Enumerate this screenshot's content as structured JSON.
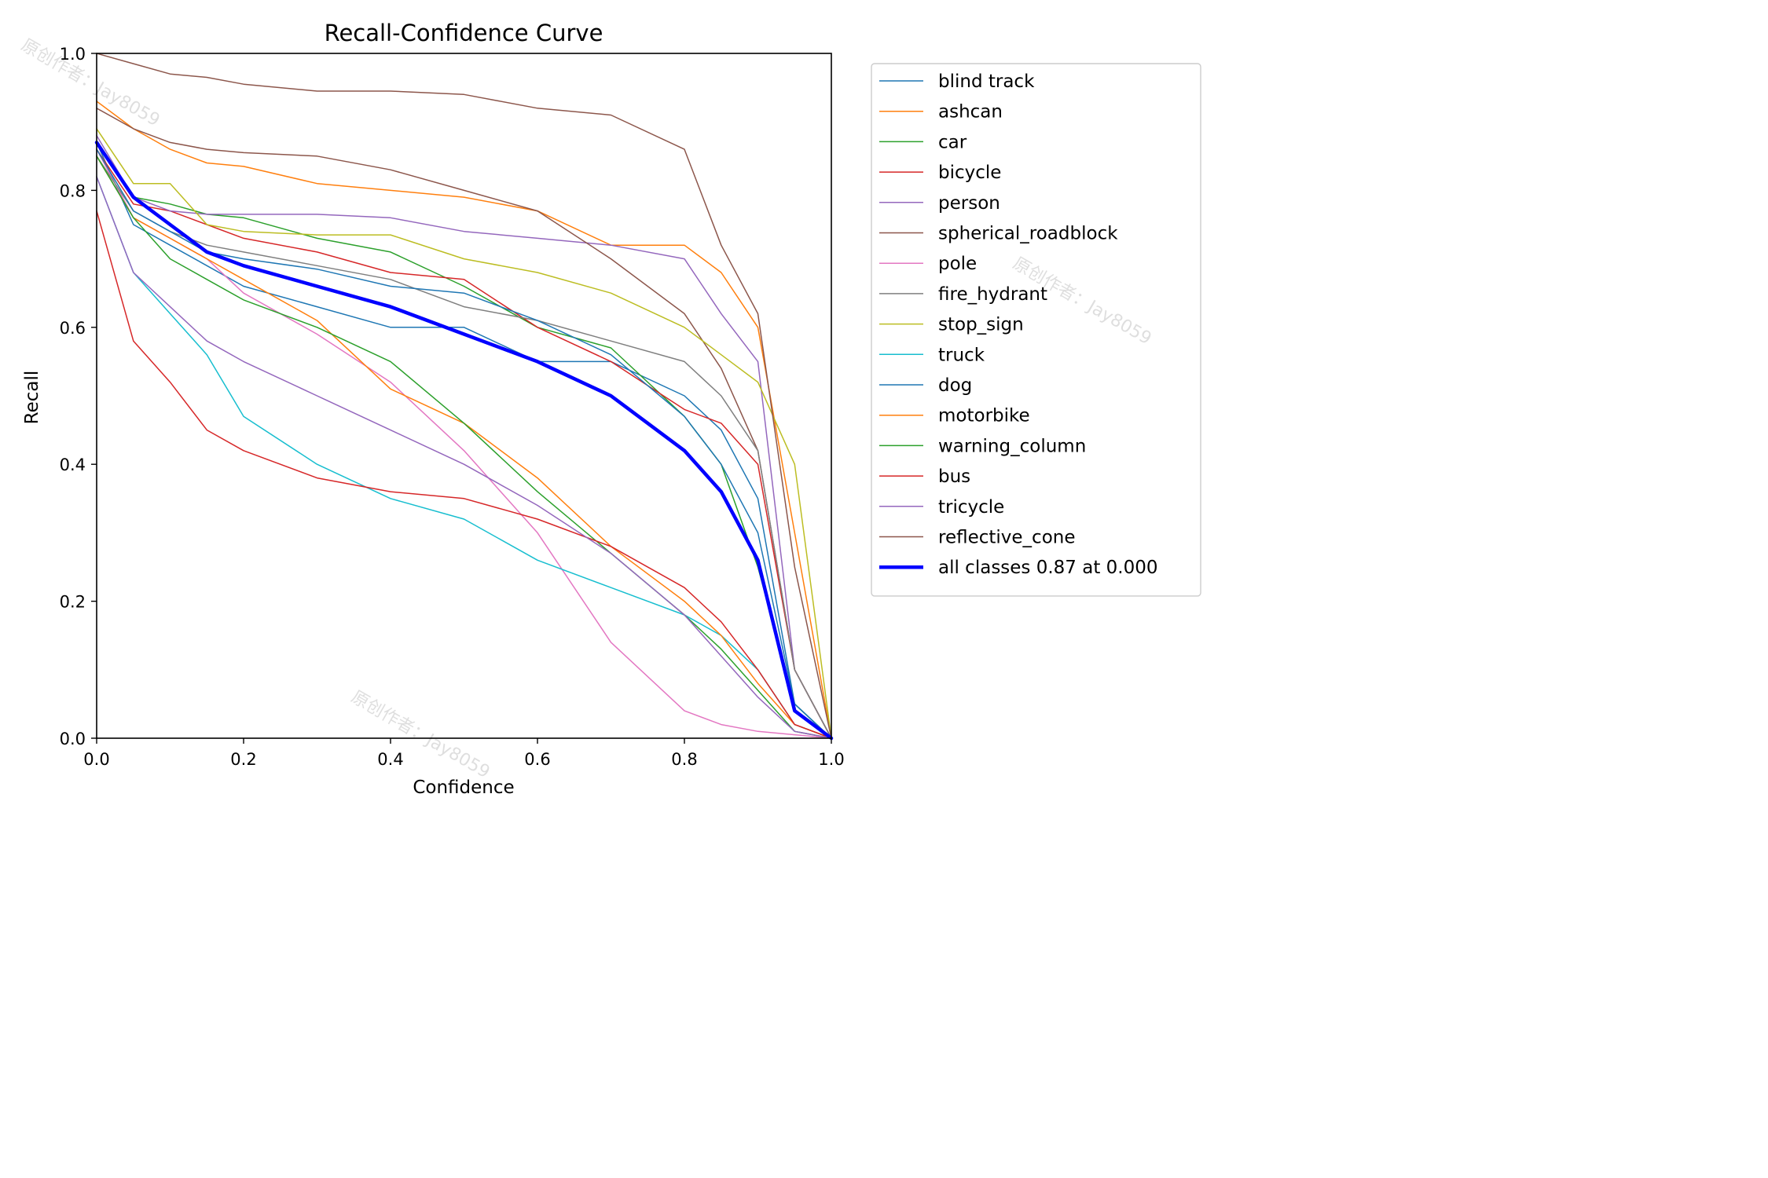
{
  "watermarks": [
    "原创作者：Jay8059",
    "原创作者：Jay8059",
    "原创作者：Jay8059"
  ],
  "chart_data": {
    "type": "line",
    "title": "Recall-Confidence Curve",
    "xlabel": "Confidence",
    "ylabel": "Recall",
    "xlim": [
      0.0,
      1.0
    ],
    "ylim": [
      0.0,
      1.0
    ],
    "xticks": [
      "0.0",
      "0.2",
      "0.4",
      "0.6",
      "0.8",
      "1.0"
    ],
    "yticks": [
      "0.0",
      "0.2",
      "0.4",
      "0.6",
      "0.8",
      "1.0"
    ],
    "grid": false,
    "legend_position": "outside right, top",
    "x": [
      0.0,
      0.05,
      0.1,
      0.15,
      0.2,
      0.3,
      0.4,
      0.5,
      0.6,
      0.7,
      0.8,
      0.85,
      0.9,
      0.95,
      1.0
    ],
    "series": [
      {
        "name": "blind track",
        "color": "#1f77b4",
        "width": 1.5,
        "values": [
          0.87,
          0.75,
          0.72,
          0.69,
          0.66,
          0.63,
          0.6,
          0.6,
          0.55,
          0.55,
          0.5,
          0.45,
          0.35,
          0.05,
          0.0
        ]
      },
      {
        "name": "ashcan",
        "color": "#ff7f0e",
        "width": 1.5,
        "values": [
          0.93,
          0.89,
          0.86,
          0.84,
          0.835,
          0.81,
          0.8,
          0.79,
          0.77,
          0.72,
          0.72,
          0.68,
          0.6,
          0.3,
          0.0
        ]
      },
      {
        "name": "car",
        "color": "#2ca02c",
        "width": 1.5,
        "values": [
          0.87,
          0.79,
          0.78,
          0.765,
          0.76,
          0.73,
          0.71,
          0.66,
          0.6,
          0.57,
          0.47,
          0.4,
          0.25,
          0.05,
          0.0
        ]
      },
      {
        "name": "bicycle",
        "color": "#d62728",
        "width": 1.5,
        "values": [
          0.86,
          0.78,
          0.77,
          0.75,
          0.73,
          0.71,
          0.68,
          0.67,
          0.6,
          0.55,
          0.48,
          0.46,
          0.4,
          0.1,
          0.0
        ]
      },
      {
        "name": "person",
        "color": "#9467bd",
        "width": 1.5,
        "values": [
          0.88,
          0.79,
          0.77,
          0.765,
          0.765,
          0.765,
          0.76,
          0.74,
          0.73,
          0.72,
          0.7,
          0.62,
          0.55,
          0.1,
          0.0
        ]
      },
      {
        "name": "spherical_roadblock",
        "color": "#8c564b",
        "width": 1.5,
        "values": [
          0.92,
          0.89,
          0.87,
          0.86,
          0.855,
          0.85,
          0.83,
          0.8,
          0.77,
          0.7,
          0.62,
          0.54,
          0.42,
          0.1,
          0.0
        ]
      },
      {
        "name": "pole",
        "color": "#e377c2",
        "width": 1.5,
        "values": [
          0.86,
          0.76,
          0.73,
          0.7,
          0.65,
          0.59,
          0.52,
          0.42,
          0.3,
          0.14,
          0.04,
          0.02,
          0.01,
          0.005,
          0.0
        ]
      },
      {
        "name": "fire_hydrant",
        "color": "#7f7f7f",
        "width": 1.5,
        "values": [
          0.85,
          0.77,
          0.74,
          0.72,
          0.71,
          0.69,
          0.67,
          0.63,
          0.61,
          0.58,
          0.55,
          0.5,
          0.42,
          0.1,
          0.0
        ]
      },
      {
        "name": "stop_sign",
        "color": "#bcbd22",
        "width": 1.5,
        "values": [
          0.89,
          0.81,
          0.81,
          0.75,
          0.74,
          0.735,
          0.735,
          0.7,
          0.68,
          0.65,
          0.6,
          0.56,
          0.52,
          0.4,
          0.0
        ]
      },
      {
        "name": "truck",
        "color": "#17becf",
        "width": 1.5,
        "values": [
          0.82,
          0.68,
          0.62,
          0.56,
          0.47,
          0.4,
          0.35,
          0.32,
          0.26,
          0.22,
          0.18,
          0.15,
          0.1,
          0.02,
          0.0
        ]
      },
      {
        "name": "dog",
        "color": "#1f77b4",
        "width": 1.5,
        "values": [
          0.86,
          0.77,
          0.74,
          0.71,
          0.7,
          0.685,
          0.66,
          0.65,
          0.61,
          0.56,
          0.47,
          0.4,
          0.3,
          0.05,
          0.0
        ]
      },
      {
        "name": "motorbike",
        "color": "#ff7f0e",
        "width": 1.5,
        "values": [
          0.85,
          0.76,
          0.73,
          0.7,
          0.67,
          0.61,
          0.51,
          0.46,
          0.38,
          0.28,
          0.2,
          0.15,
          0.08,
          0.02,
          0.0
        ]
      },
      {
        "name": "warning_column",
        "color": "#2ca02c",
        "width": 1.5,
        "values": [
          0.85,
          0.76,
          0.7,
          0.67,
          0.64,
          0.6,
          0.55,
          0.46,
          0.36,
          0.27,
          0.18,
          0.13,
          0.07,
          0.01,
          0.0
        ]
      },
      {
        "name": "bus",
        "color": "#d62728",
        "width": 1.5,
        "values": [
          0.77,
          0.58,
          0.52,
          0.45,
          0.42,
          0.38,
          0.36,
          0.35,
          0.32,
          0.28,
          0.22,
          0.17,
          0.1,
          0.02,
          0.0
        ]
      },
      {
        "name": "tricycle",
        "color": "#9467bd",
        "width": 1.5,
        "values": [
          0.82,
          0.68,
          0.63,
          0.58,
          0.55,
          0.5,
          0.45,
          0.4,
          0.34,
          0.27,
          0.18,
          0.12,
          0.06,
          0.01,
          0.0
        ]
      },
      {
        "name": "reflective_cone",
        "color": "#8c564b",
        "width": 1.5,
        "values": [
          1.0,
          0.985,
          0.97,
          0.965,
          0.955,
          0.945,
          0.945,
          0.94,
          0.92,
          0.91,
          0.86,
          0.72,
          0.62,
          0.25,
          0.0
        ]
      },
      {
        "name": "all classes 0.87 at 0.000",
        "color": "#0000ff",
        "width": 4.5,
        "values": [
          0.87,
          0.79,
          0.75,
          0.71,
          0.69,
          0.66,
          0.63,
          0.59,
          0.55,
          0.5,
          0.42,
          0.36,
          0.26,
          0.04,
          0.0
        ]
      }
    ]
  }
}
